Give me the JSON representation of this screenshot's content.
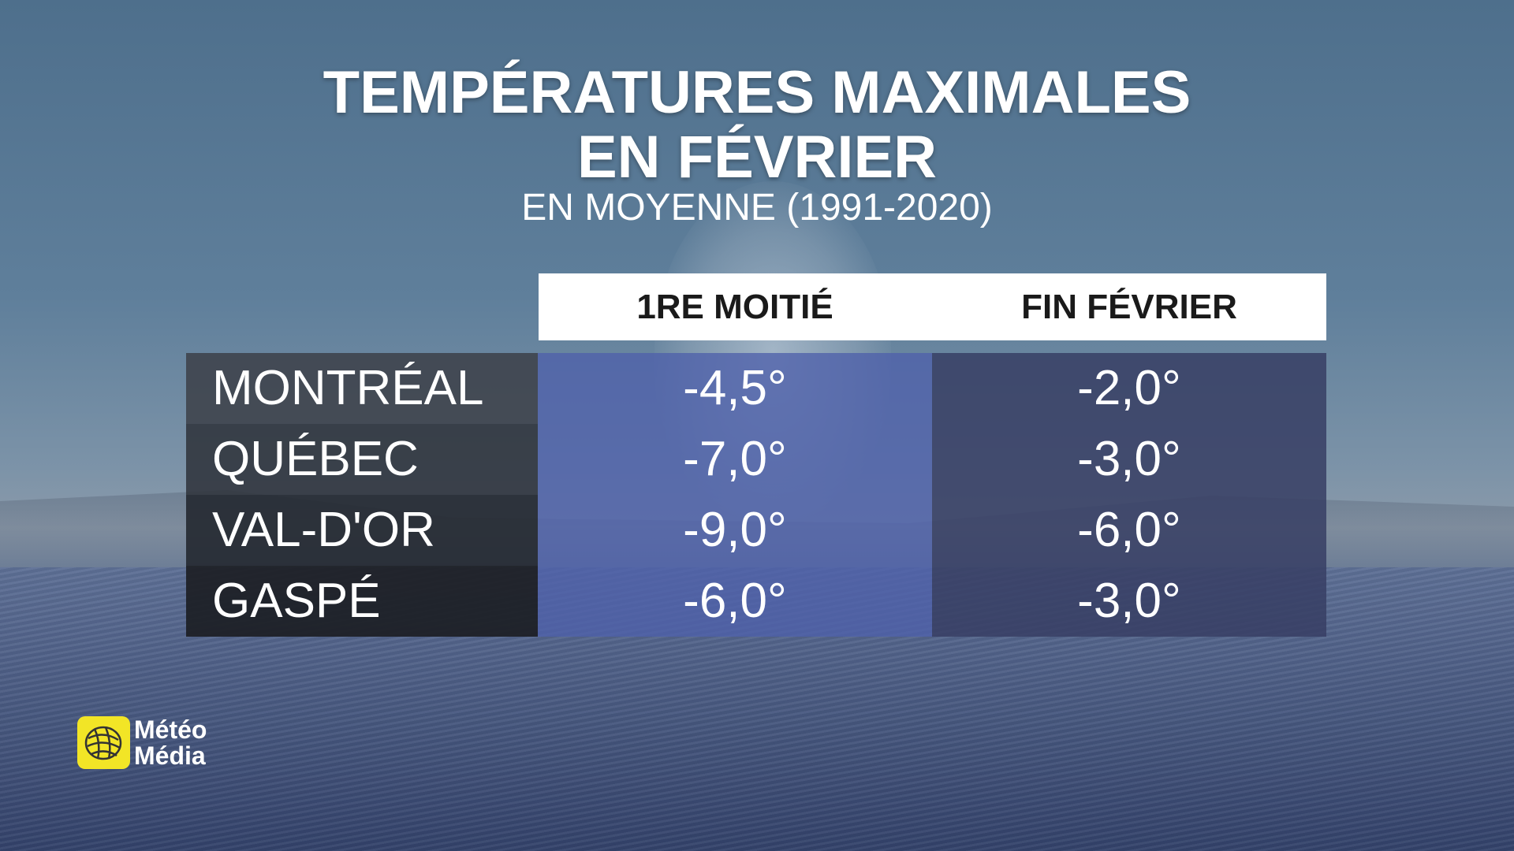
{
  "title": [
    "TEMPÉRATURES MAXIMALES",
    "EN FÉVRIER"
  ],
  "subtitle": "EN MOYENNE (1991-2020)",
  "table": {
    "header": [
      "1RE MOITIÉ",
      "FIN FÉVRIER"
    ],
    "rows": [
      [
        "MONTRÉAL",
        "-4,5°",
        "-2,0°"
      ],
      [
        "QUÉBEC",
        "-7,0°",
        "-3,0°"
      ],
      [
        "VAL-D'OR",
        "-9,0°",
        "-6,0°"
      ],
      [
        "GASPÉ",
        "-6,0°",
        "-3,0°"
      ]
    ]
  },
  "logo": [
    "Météo",
    "Média"
  ]
}
